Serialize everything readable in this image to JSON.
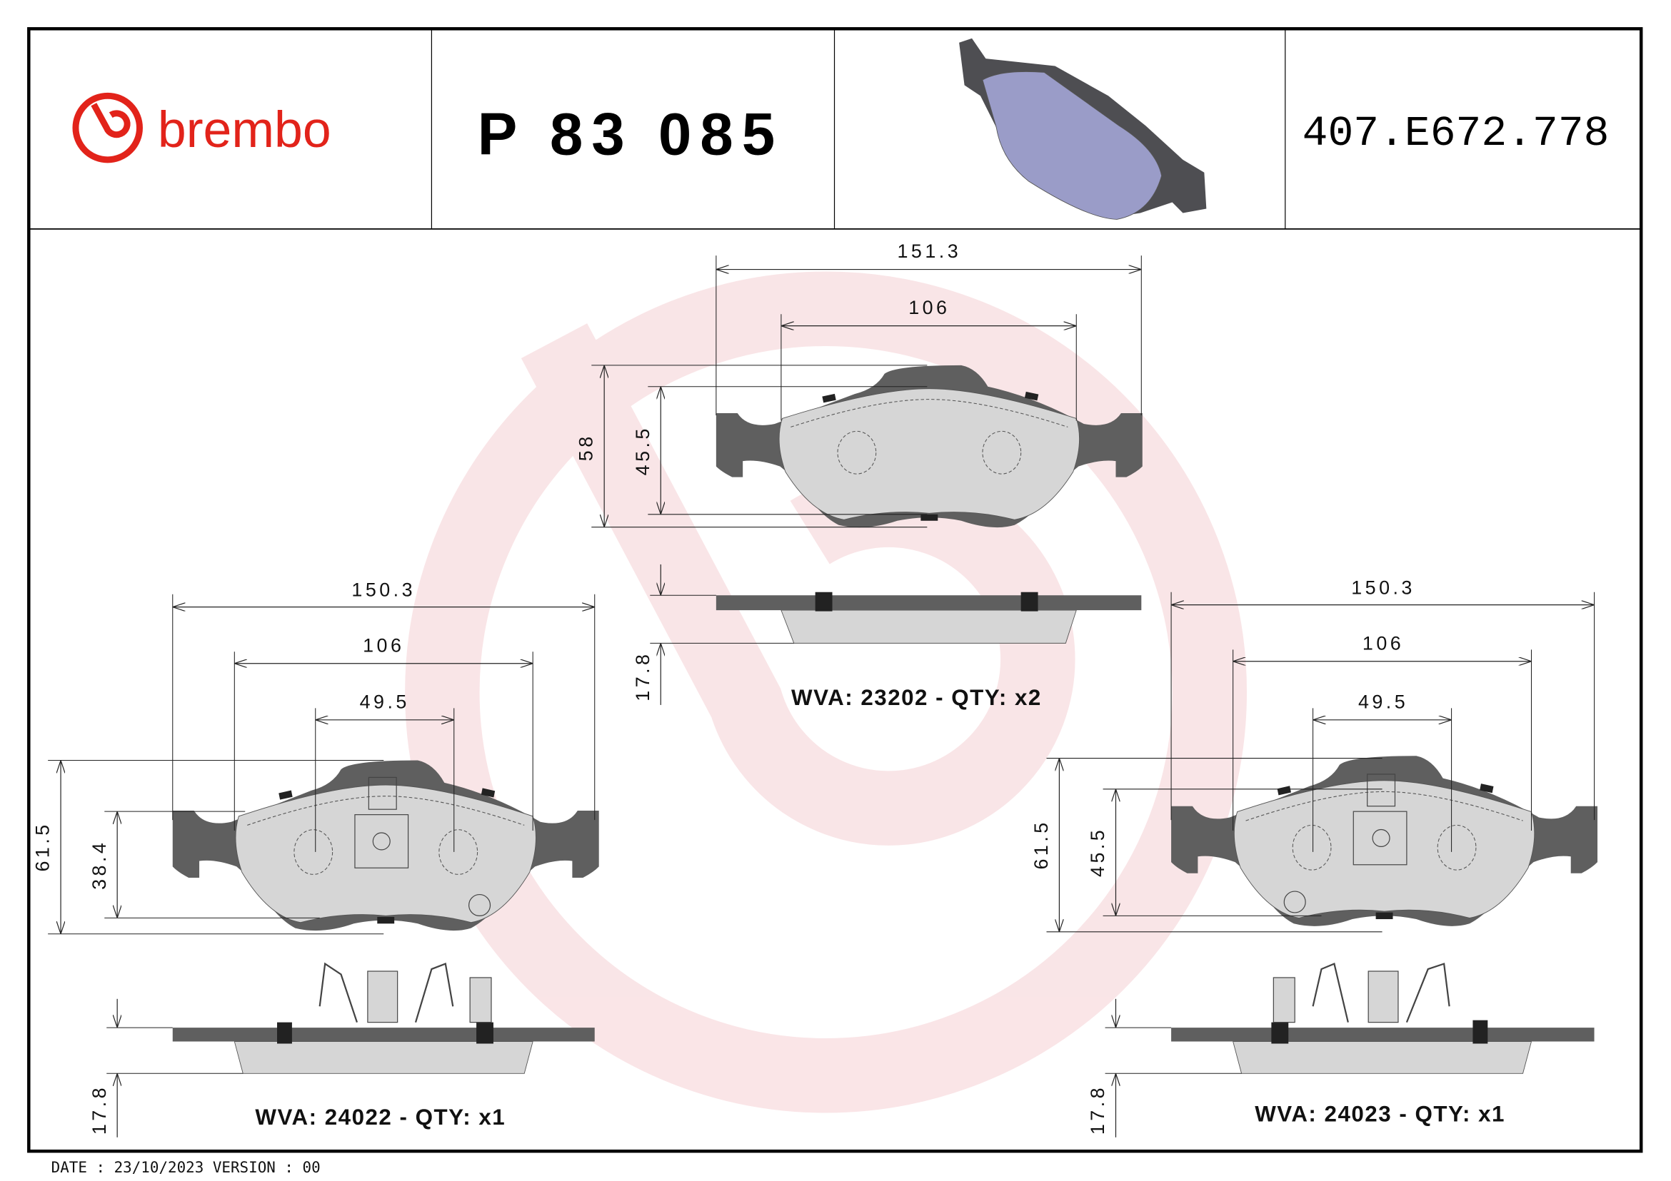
{
  "header": {
    "brand": "brembo",
    "part_number": "P 83 085",
    "ref_code": "407.E672.778",
    "brand_color": "#e2231a",
    "friction_color_3d": "#9a9cc8"
  },
  "top_pad": {
    "width_overall": "151.3",
    "width_inner": "106",
    "height_overall": "58",
    "height_inner": "45.5",
    "thickness": "17.8",
    "label": "WVA: 23202 - QTY: x2"
  },
  "left_pad": {
    "width_overall": "150.3",
    "width_inner": "106",
    "width_center": "49.5",
    "height_overall": "61.5",
    "height_inner": "38.4",
    "thickness": "17.8",
    "label": "WVA: 24022 - QTY: x1"
  },
  "right_pad": {
    "width_overall": "150.3",
    "width_inner": "106",
    "width_center": "49.5",
    "height_overall": "61.5",
    "height_inner": "45.5",
    "thickness": "17.8",
    "label": "WVA: 24023 - QTY: x1"
  },
  "footer": {
    "date_version": "DATE : 23/10/2023 VERSION : 00"
  },
  "watermark": {
    "color": "#f8d7da"
  }
}
